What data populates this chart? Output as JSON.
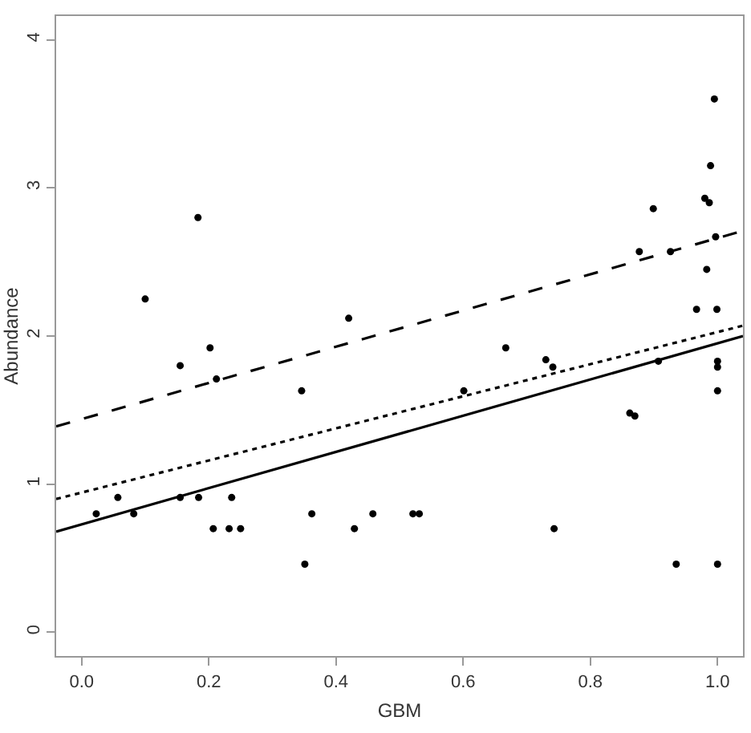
{
  "chart_data": {
    "type": "scatter",
    "xlabel": "GBM",
    "ylabel": "Abundance",
    "xlim": [
      -0.04,
      1.04
    ],
    "ylim": [
      -0.16,
      4.16
    ],
    "xticks": [
      {
        "value": 0,
        "label": "0.0"
      },
      0.2,
      0.4,
      0.6,
      0.8,
      {
        "value": 1,
        "label": "1.0"
      }
    ],
    "yticks": [
      0,
      1,
      2,
      3,
      4
    ],
    "grid": false,
    "series": [
      {
        "color": "#000000",
        "marker": "circle",
        "x": [
          0.023,
          0.057,
          0.082,
          0.1,
          0.155,
          0.155,
          0.183,
          0.184,
          0.202,
          0.212,
          0.207,
          0.232,
          0.236,
          0.25,
          0.346,
          0.351,
          0.362,
          0.42,
          0.429,
          0.458,
          0.521,
          0.531,
          0.601,
          0.667,
          0.73,
          0.741,
          0.743,
          0.862,
          0.87,
          0.877,
          0.899,
          0.907,
          0.926,
          0.935,
          0.967,
          0.98,
          0.983,
          0.987,
          0.989,
          0.995,
          0.997,
          0.999,
          1.0,
          1.0,
          1.0,
          1.0
        ],
        "values": [
          0.8,
          0.91,
          0.8,
          2.25,
          1.8,
          0.91,
          2.8,
          0.91,
          1.92,
          1.71,
          0.7,
          0.7,
          0.91,
          0.7,
          1.63,
          0.46,
          0.8,
          2.12,
          0.7,
          0.8,
          0.8,
          0.8,
          1.63,
          1.92,
          1.84,
          1.79,
          0.7,
          1.48,
          1.46,
          2.57,
          2.86,
          1.83,
          2.57,
          0.46,
          2.18,
          2.93,
          2.45,
          2.9,
          3.15,
          3.6,
          2.67,
          2.18,
          1.83,
          1.79,
          1.63,
          0.46
        ]
      },
      {
        "type": "line",
        "color": "#000000",
        "line_style": "solid",
        "x": [
          -0.04,
          1.04
        ],
        "values": [
          0.68,
          2.0
        ]
      },
      {
        "type": "line",
        "color": "#000000",
        "line_style": "dotted",
        "x": [
          -0.04,
          1.04
        ],
        "values": [
          0.9,
          2.07
        ]
      },
      {
        "type": "line",
        "color": "#000000",
        "line_style": "dashed",
        "x": [
          -0.04,
          1.04
        ],
        "values": [
          1.39,
          2.71
        ]
      }
    ]
  }
}
